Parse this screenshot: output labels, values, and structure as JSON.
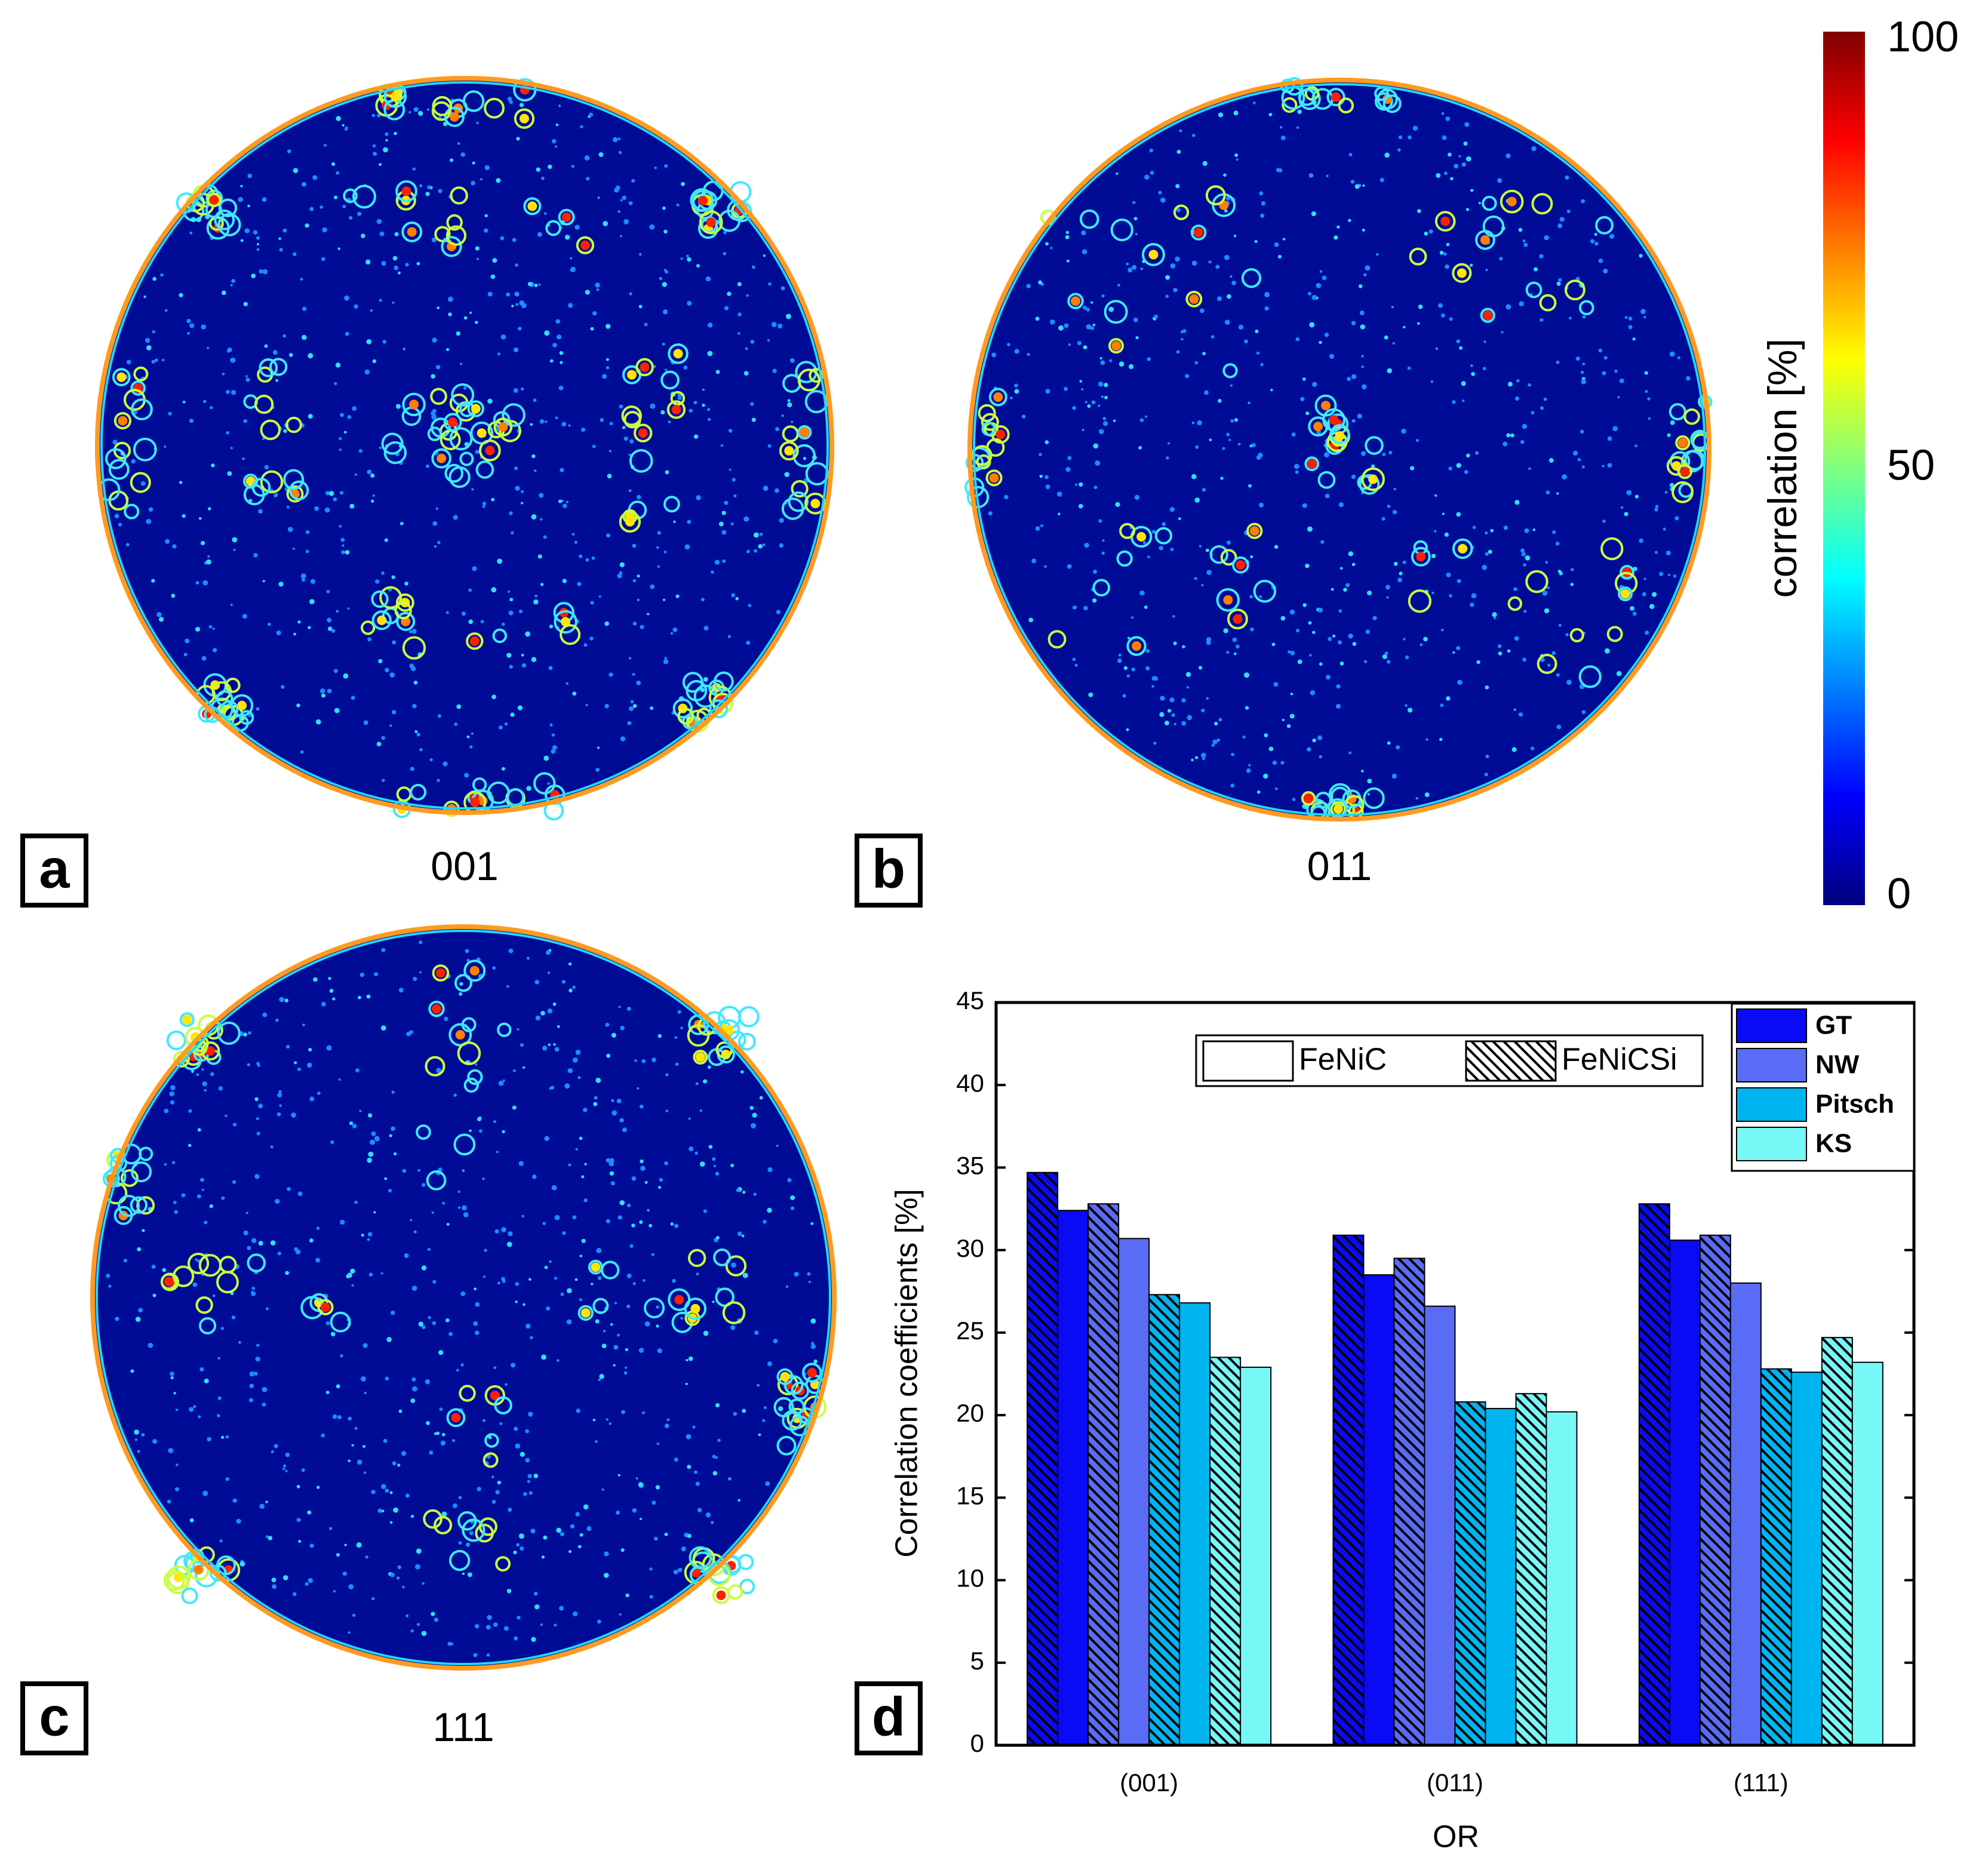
{
  "panels": [
    {
      "letter": "a",
      "caption": "001"
    },
    {
      "letter": "b",
      "caption": "011"
    },
    {
      "letter": "c",
      "caption": "111"
    }
  ],
  "colorbar": {
    "label": "correlation [%]",
    "lim": [
      0,
      100
    ],
    "ticks": [
      0,
      50,
      100
    ]
  },
  "chart_data": {
    "type": "bar",
    "panel": "d",
    "ylabel": "Correlation coefficients [%]",
    "xlabel": "OR",
    "categories": [
      "(001)",
      "(011)",
      "(111)"
    ],
    "alloys": [
      {
        "name": "FeNiC",
        "hatch": false
      },
      {
        "name": "FeNiCSi",
        "hatch": true
      }
    ],
    "series": [
      {
        "name": "GT",
        "color": "#0a0af5",
        "values": [
          [
            32.4,
            34.7
          ],
          [
            28.5,
            30.9
          ],
          [
            30.6,
            32.8
          ]
        ]
      },
      {
        "name": "NW",
        "color": "#5a6cf5",
        "values": [
          [
            30.7,
            32.8
          ],
          [
            26.6,
            29.5
          ],
          [
            28.0,
            30.9
          ]
        ]
      },
      {
        "name": "Pitsch",
        "color": "#00b4f0",
        "values": [
          [
            26.8,
            27.3
          ],
          [
            20.4,
            20.8
          ],
          [
            22.6,
            22.8
          ]
        ]
      },
      {
        "name": "KS",
        "color": "#78f7f7",
        "values": [
          [
            22.9,
            23.5
          ],
          [
            20.2,
            21.3
          ],
          [
            23.2,
            24.7
          ]
        ]
      }
    ],
    "ylim": [
      0,
      45
    ],
    "yticks": [
      0,
      5,
      10,
      15,
      20,
      25,
      30,
      35,
      40,
      45
    ]
  }
}
